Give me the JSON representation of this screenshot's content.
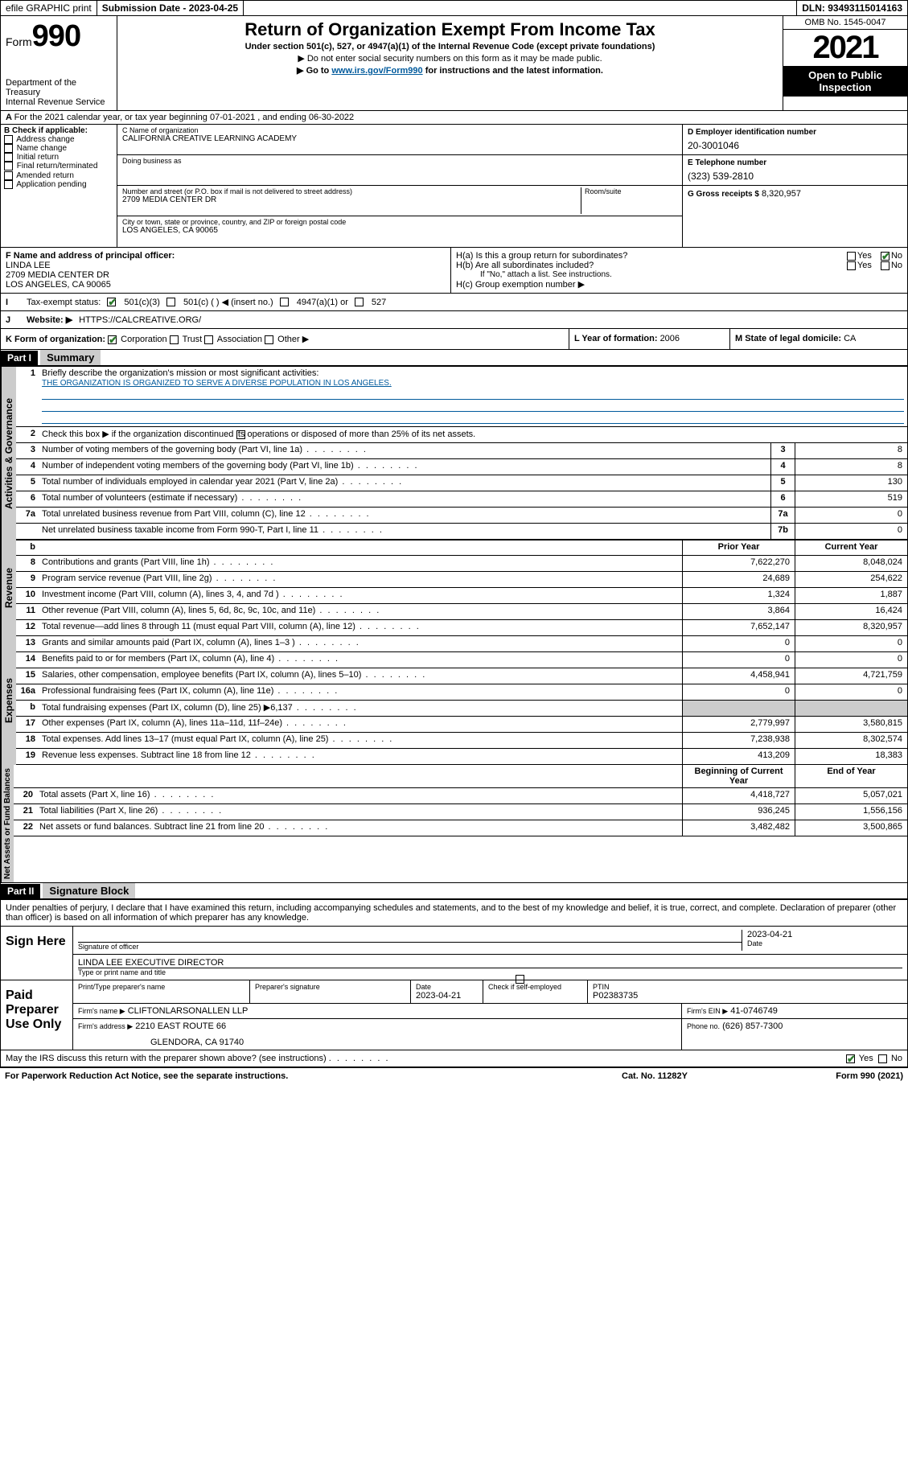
{
  "topbar": {
    "efile": "efile GRAPHIC print",
    "submission_label": "Submission Date - 2023-04-25",
    "dln": "DLN: 93493115014163"
  },
  "header": {
    "form_word": "Form",
    "form_number": "990",
    "title": "Return of Organization Exempt From Income Tax",
    "subtitle": "Under section 501(c), 527, or 4947(a)(1) of the Internal Revenue Code (except private foundations)",
    "note1": "▶ Do not enter social security numbers on this form as it may be made public.",
    "note2_pre": "▶ Go to ",
    "note2_link": "www.irs.gov/Form990",
    "note2_post": " for instructions and the latest information.",
    "dept": "Department of the Treasury",
    "irs": "Internal Revenue Service",
    "omb": "OMB No. 1545-0047",
    "year": "2021",
    "open": "Open to Public Inspection"
  },
  "line_a": "For the 2021 calendar year, or tax year beginning 07-01-2021   , and ending 06-30-2022",
  "col_b": {
    "label": "B Check if applicable:",
    "items": [
      "Address change",
      "Name change",
      "Initial return",
      "Final return/terminated",
      "Amended return",
      "Application pending"
    ]
  },
  "col_c": {
    "name_label": "C Name of organization",
    "name": "CALIFORNIA CREATIVE LEARNING ACADEMY",
    "dba_label": "Doing business as",
    "dba": "",
    "addr_label": "Number and street (or P.O. box if mail is not delivered to street address)",
    "room_label": "Room/suite",
    "addr": "2709 MEDIA CENTER DR",
    "city_label": "City or town, state or province, country, and ZIP or foreign postal code",
    "city": "LOS ANGELES, CA  90065"
  },
  "col_d": {
    "d_label": "D Employer identification number",
    "d_val": "20-3001046",
    "e_label": "E Telephone number",
    "e_val": "(323) 539-2810",
    "g_label": "G Gross receipts $",
    "g_val": "8,320,957"
  },
  "officer": {
    "f_label": "F Name and address of principal officer:",
    "name": "LINDA LEE",
    "addr1": "2709 MEDIA CENTER DR",
    "addr2": "LOS ANGELES, CA  90065"
  },
  "section_h": {
    "ha": "H(a)  Is this a group return for subordinates?",
    "hb": "H(b)  Are all subordinates included?",
    "hb_note": "If \"No,\" attach a list. See instructions.",
    "hc": "H(c)  Group exemption number ▶",
    "yes": "Yes",
    "no": "No"
  },
  "line_i": {
    "label": "I",
    "text": "Tax-exempt status:",
    "opt1": "501(c)(3)",
    "opt2": "501(c) (  ) ◀ (insert no.)",
    "opt3": "4947(a)(1) or",
    "opt4": "527"
  },
  "line_j": {
    "label": "J",
    "text": "Website: ▶",
    "val": "HTTPS://CALCREATIVE.ORG/"
  },
  "line_k": {
    "label": "K Form of organization:",
    "opts": [
      "Corporation",
      "Trust",
      "Association",
      "Other ▶"
    ],
    "l_label": "L Year of formation: ",
    "l_val": "2006",
    "m_label": "M State of legal domicile: ",
    "m_val": "CA"
  },
  "parts": {
    "p1": "Part I",
    "p1_title": "Summary",
    "p2": "Part II",
    "p2_title": "Signature Block"
  },
  "summary": {
    "q1": "Briefly describe the organization's mission or most significant activities:",
    "mission": "THE ORGANIZATION IS ORGANIZED TO SERVE A DIVERSE POPULATION IN LOS ANGELES.",
    "q2": "Check this box ▶     if the organization discontinued its operations or disposed of more than 25% of its net assets.",
    "tabs": {
      "gov": "Activities & Governance",
      "rev": "Revenue",
      "exp": "Expenses",
      "net": "Net Assets or Fund Balances"
    },
    "col_prior": "Prior Year",
    "col_current": "Current Year",
    "col_begin": "Beginning of Current Year",
    "col_end": "End of Year",
    "rows_gov": [
      {
        "n": "3",
        "d": "Number of voting members of the governing body (Part VI, line 1a)",
        "box": "3",
        "v": "8"
      },
      {
        "n": "4",
        "d": "Number of independent voting members of the governing body (Part VI, line 1b)",
        "box": "4",
        "v": "8"
      },
      {
        "n": "5",
        "d": "Total number of individuals employed in calendar year 2021 (Part V, line 2a)",
        "box": "5",
        "v": "130"
      },
      {
        "n": "6",
        "d": "Total number of volunteers (estimate if necessary)",
        "box": "6",
        "v": "519"
      },
      {
        "n": "7a",
        "d": "Total unrelated business revenue from Part VIII, column (C), line 12",
        "box": "7a",
        "v": "0"
      },
      {
        "n": "",
        "d": "Net unrelated business taxable income from Form 990-T, Part I, line 11",
        "box": "7b",
        "v": "0"
      }
    ],
    "rows_rev": [
      {
        "n": "8",
        "d": "Contributions and grants (Part VIII, line 1h)",
        "p": "7,622,270",
        "c": "8,048,024"
      },
      {
        "n": "9",
        "d": "Program service revenue (Part VIII, line 2g)",
        "p": "24,689",
        "c": "254,622"
      },
      {
        "n": "10",
        "d": "Investment income (Part VIII, column (A), lines 3, 4, and 7d )",
        "p": "1,324",
        "c": "1,887"
      },
      {
        "n": "11",
        "d": "Other revenue (Part VIII, column (A), lines 5, 6d, 8c, 9c, 10c, and 11e)",
        "p": "3,864",
        "c": "16,424"
      },
      {
        "n": "12",
        "d": "Total revenue—add lines 8 through 11 (must equal Part VIII, column (A), line 12)",
        "p": "7,652,147",
        "c": "8,320,957"
      }
    ],
    "rows_exp": [
      {
        "n": "13",
        "d": "Grants and similar amounts paid (Part IX, column (A), lines 1–3 )",
        "p": "0",
        "c": "0"
      },
      {
        "n": "14",
        "d": "Benefits paid to or for members (Part IX, column (A), line 4)",
        "p": "0",
        "c": "0"
      },
      {
        "n": "15",
        "d": "Salaries, other compensation, employee benefits (Part IX, column (A), lines 5–10)",
        "p": "4,458,941",
        "c": "4,721,759"
      },
      {
        "n": "16a",
        "d": "Professional fundraising fees (Part IX, column (A), line 11e)",
        "p": "0",
        "c": "0"
      },
      {
        "n": "b",
        "d": "Total fundraising expenses (Part IX, column (D), line 25) ▶6,137",
        "p": "shade",
        "c": "shade"
      },
      {
        "n": "17",
        "d": "Other expenses (Part IX, column (A), lines 11a–11d, 11f–24e)",
        "p": "2,779,997",
        "c": "3,580,815"
      },
      {
        "n": "18",
        "d": "Total expenses. Add lines 13–17 (must equal Part IX, column (A), line 25)",
        "p": "7,238,938",
        "c": "8,302,574"
      },
      {
        "n": "19",
        "d": "Revenue less expenses. Subtract line 18 from line 12",
        "p": "413,209",
        "c": "18,383"
      }
    ],
    "rows_net": [
      {
        "n": "20",
        "d": "Total assets (Part X, line 16)",
        "p": "4,418,727",
        "c": "5,057,021"
      },
      {
        "n": "21",
        "d": "Total liabilities (Part X, line 26)",
        "p": "936,245",
        "c": "1,556,156"
      },
      {
        "n": "22",
        "d": "Net assets or fund balances. Subtract line 21 from line 20",
        "p": "3,482,482",
        "c": "3,500,865"
      }
    ]
  },
  "sig": {
    "declare": "Under penalties of perjury, I declare that I have examined this return, including accompanying schedules and statements, and to the best of my knowledge and belief, it is true, correct, and complete. Declaration of preparer (other than officer) is based on all information of which preparer has any knowledge.",
    "sign_here": "Sign Here",
    "sig_officer": "Signature of officer",
    "date": "Date",
    "sig_date": "2023-04-21",
    "name_title": "LINDA LEE  EXECUTIVE DIRECTOR",
    "name_title_label": "Type or print name and title",
    "paid": "Paid Preparer Use Only",
    "prep_name_label": "Print/Type preparer's name",
    "prep_sig_label": "Preparer's signature",
    "prep_date_label": "Date",
    "prep_date": "2023-04-21",
    "check_if": "Check      if self-employed",
    "ptin_label": "PTIN",
    "ptin": "P02383735",
    "firm_name_label": "Firm's name   ▶",
    "firm_name": "CLIFTONLARSONALLEN LLP",
    "firm_ein_label": "Firm's EIN ▶",
    "firm_ein": "41-0746749",
    "firm_addr_label": "Firm's address ▶",
    "firm_addr1": "2210 EAST ROUTE 66",
    "firm_addr2": "GLENDORA, CA  91740",
    "phone_label": "Phone no.",
    "phone": "(626) 857-7300",
    "may_irs": "May the IRS discuss this return with the preparer shown above? (see instructions)",
    "yes": "Yes",
    "no": "No"
  },
  "footer": {
    "paperwork": "For Paperwork Reduction Act Notice, see the separate instructions.",
    "cat": "Cat. No. 11282Y",
    "form": "Form 990 (2021)"
  }
}
